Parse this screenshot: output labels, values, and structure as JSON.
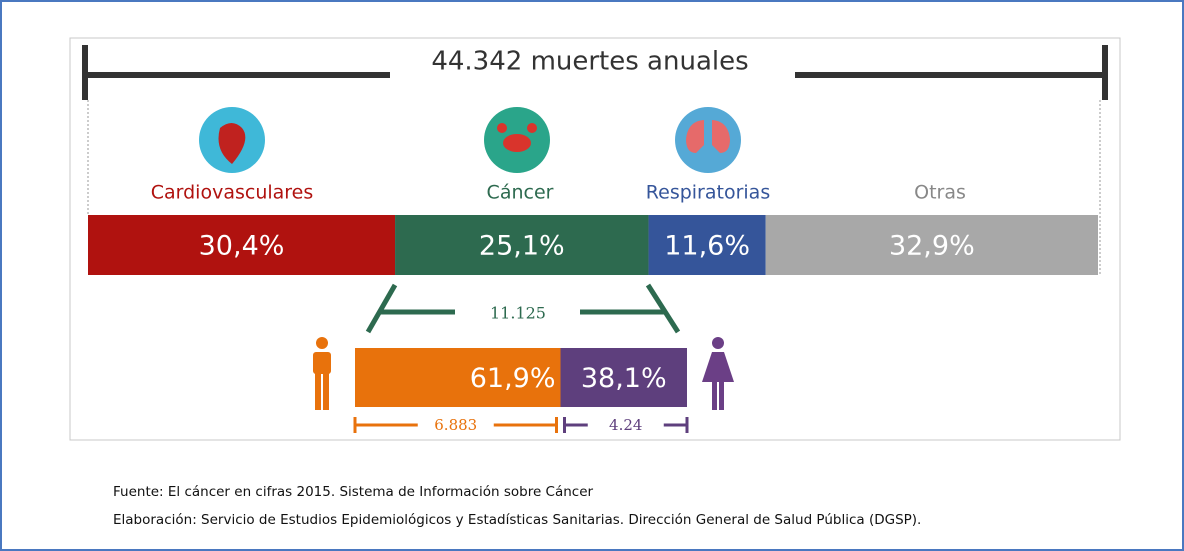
{
  "chart_data": [
    {
      "type": "stacked-bar",
      "title": "44.342 muertes anuales",
      "xlim": [
        0,
        100
      ],
      "series": [
        {
          "name": "Cardiovasculares",
          "color": "#b0120f",
          "values": [
            30.4
          ],
          "value_labels": [
            "30,4%"
          ]
        },
        {
          "name": "Cáncer",
          "color": "#2d6a4f",
          "values": [
            25.1
          ],
          "value_labels": [
            "25,1%"
          ]
        },
        {
          "name": "Respiratorias",
          "color": "#35559a",
          "values": [
            11.6
          ],
          "value_labels": [
            "11,6%"
          ]
        },
        {
          "name": "Otras",
          "color": "#a8a8a8",
          "values": [
            32.9
          ],
          "value_labels": [
            "32,9%"
          ]
        }
      ]
    },
    {
      "type": "stacked-bar",
      "title": "11.125",
      "xlim": [
        0,
        100
      ],
      "series": [
        {
          "color": "#e8720c",
          "values": [
            61.9
          ],
          "value_labels": [
            "61,9%"
          ],
          "count_label": "6.883"
        },
        {
          "color": "#5e3f7d",
          "values": [
            38.1
          ],
          "value_labels": [
            "38,1%"
          ],
          "count_label": "4.24"
        }
      ]
    }
  ],
  "footer": {
    "source": "Fuente: El cáncer en cifras 2015. Sistema de Información sobre Cáncer",
    "credit": "Elaboración: Servicio de Estudios Epidemiológicos y Estadísticas Sanitarias. Dirección General de Salud Pública (DGSP)."
  }
}
